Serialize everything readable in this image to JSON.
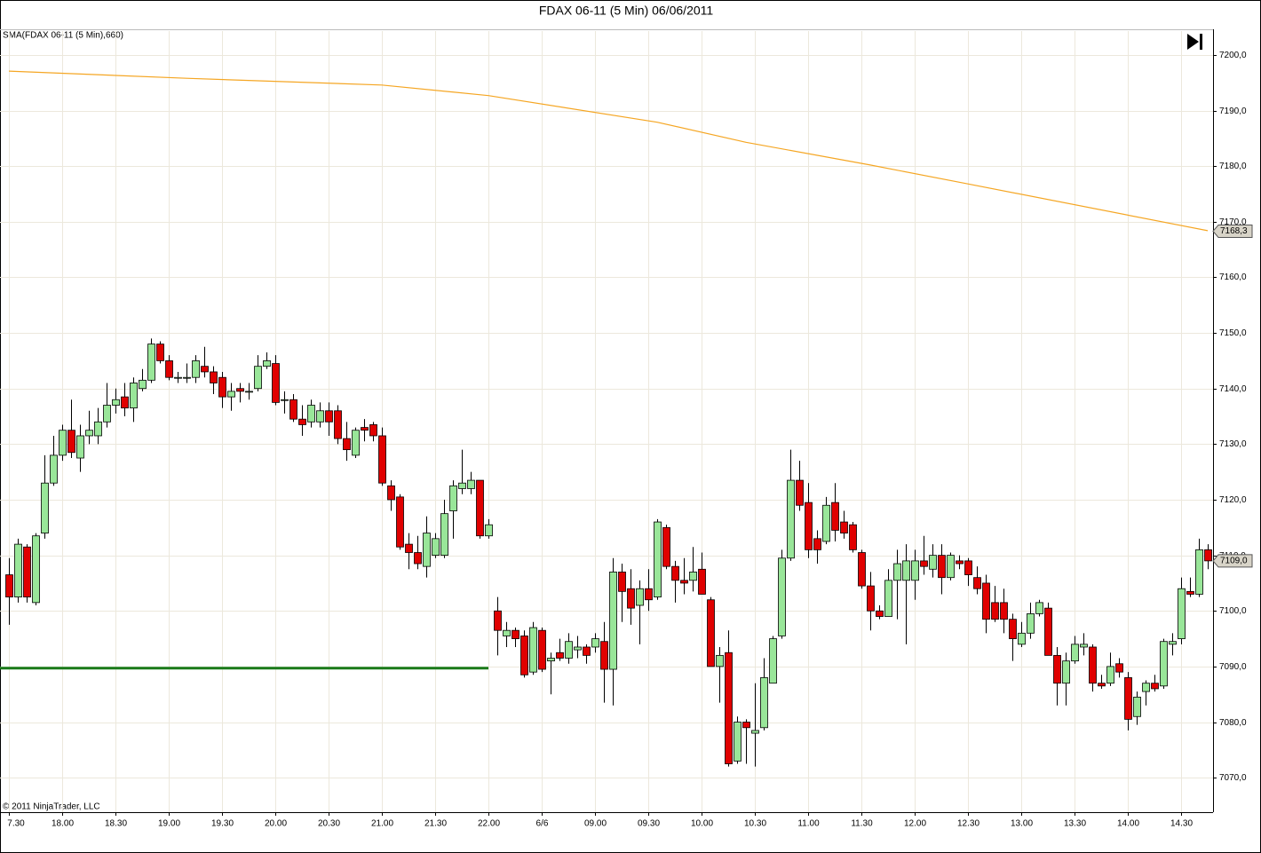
{
  "chart_data": {
    "type": "candlestick",
    "title": "FDAX 06-11 (5 Min)  06/06/2011",
    "indicator_label": "SMA(FDAX 06-11 (5 Min),660)",
    "copyright": "© 2011 NinjaTrader, LLC",
    "up_color": "#99e699",
    "down_color": "#e00000",
    "grid": true,
    "xlim": [
      -1,
      135.6
    ],
    "xticks": [
      {
        "value": 0,
        "label": "7.30"
      },
      {
        "value": 6,
        "label": "18.00"
      },
      {
        "value": 12,
        "label": "18.30"
      },
      {
        "value": 18,
        "label": "19.00"
      },
      {
        "value": 24,
        "label": "19.30"
      },
      {
        "value": 30,
        "label": "20.00"
      },
      {
        "value": 36,
        "label": "20.30"
      },
      {
        "value": 42,
        "label": "21.00"
      },
      {
        "value": 48,
        "label": "21.30"
      },
      {
        "value": 54,
        "label": "22.00"
      },
      {
        "value": 60,
        "label": "6/6"
      },
      {
        "value": 66,
        "label": "09.00"
      },
      {
        "value": 72,
        "label": "09.30"
      },
      {
        "value": 78,
        "label": "10.00"
      },
      {
        "value": 84,
        "label": "10.30"
      },
      {
        "value": 90,
        "label": "11.00"
      },
      {
        "value": 96,
        "label": "11.30"
      },
      {
        "value": 102,
        "label": "12.00"
      },
      {
        "value": 108,
        "label": "12.30"
      },
      {
        "value": 114,
        "label": "13.00"
      },
      {
        "value": 120,
        "label": "13.30"
      },
      {
        "value": 126,
        "label": "14.00"
      },
      {
        "value": 132,
        "label": "14.30"
      }
    ],
    "ylim": [
      7063.8,
      7204.3
    ],
    "yticks": [
      {
        "value": 7070,
        "label": "7070,0"
      },
      {
        "value": 7080,
        "label": "7080,0"
      },
      {
        "value": 7090,
        "label": "7090,0"
      },
      {
        "value": 7100,
        "label": "7100,0"
      },
      {
        "value": 7110,
        "label": "7110,0"
      },
      {
        "value": 7120,
        "label": "7120,0"
      },
      {
        "value": 7130,
        "label": "7130,0"
      },
      {
        "value": 7140,
        "label": "7140,0"
      },
      {
        "value": 7150,
        "label": "7150,0"
      },
      {
        "value": 7160,
        "label": "7160,0"
      },
      {
        "value": 7170,
        "label": "7170,0"
      },
      {
        "value": 7180,
        "label": "7180,0"
      },
      {
        "value": 7190,
        "label": "7190,0"
      },
      {
        "value": 7200,
        "label": "7200,0"
      }
    ],
    "open": [
      7106.5,
      7102.5,
      7111.5,
      7101.5,
      7114,
      7123,
      7128,
      7132.5,
      7127.5,
      7131.5,
      7131.5,
      7134,
      7137,
      7138.5,
      7136.5,
      7140,
      7141.5,
      7148,
      7145,
      7142,
      7142,
      7142,
      7144,
      7143,
      7142,
      7138.5,
      7140,
      7139.5,
      7140,
      7144,
      7144.5,
      7138,
      7138,
      7134.5,
      7134,
      7134,
      7136,
      7136,
      7131,
      7128,
      7133,
      7133.5,
      7131.5,
      7122.5,
      7120.5,
      7112,
      7110.5,
      7108,
      7110,
      7110,
      7118,
      7122,
      7122,
      7123.5,
      7113.5,
      7100,
      7095.5,
      7096.5,
      7095.5,
      7089,
      7096.5,
      7091,
      7092.5,
      7091.5,
      7093,
      7093.5,
      7093.5,
      7094.5,
      7089.5,
      7107,
      7104,
      7101,
      7104,
      7102.5,
      7115,
      7108,
      7105.5,
      7105.5,
      7107.5,
      7102,
      7090,
      7092.5,
      7073,
      7080,
      7078,
      7079,
      7087,
      7095.5,
      7109.5,
      7123.5,
      7119.5,
      7113,
      7112.5,
      7119.5,
      7116,
      7115.5,
      7110.5,
      7104.5,
      7100,
      7099,
      7105.5,
      7105.5,
      7105.5,
      7109,
      7107.5,
      7110,
      7106,
      7109,
      7109,
      7106,
      7105,
      7101.5,
      7101.5,
      7098.5,
      7094,
      7096,
      7099.5,
      7100.5,
      7092,
      7087,
      7091,
      7093.5,
      7093.5,
      7087,
      7087,
      7090.5,
      7088,
      7081,
      7085.5,
      7087,
      7086.5,
      7094,
      7095,
      7103.5,
      7103,
      7111
    ],
    "high": [
      7109.5,
      7113,
      7112,
      7114,
      7128,
      7131.5,
      7133.5,
      7138,
      7133.5,
      7136,
      7136.5,
      7141,
      7140,
      7141,
      7142,
      7143.5,
      7149,
      7148.5,
      7146,
      7143,
      7144.5,
      7146,
      7147.5,
      7144,
      7143,
      7141,
      7141,
      7141,
      7146,
      7146.5,
      7146,
      7139.5,
      7139,
      7137,
      7138,
      7137.5,
      7137.5,
      7137,
      7134,
      7133,
      7134.5,
      7134,
      7133,
      7123.5,
      7121,
      7114,
      7113.5,
      7117,
      7114,
      7120,
      7123.5,
      7129,
      7125,
      7123.5,
      7116.5,
      7102.5,
      7098,
      7097,
      7096.5,
      7098,
      7097,
      7092.5,
      7095,
      7096,
      7095.5,
      7094,
      7096,
      7098,
      7109.5,
      7108.5,
      7107.5,
      7105.5,
      7107.5,
      7116.5,
      7115.5,
      7109,
      7109.5,
      7111.5,
      7110.5,
      7102.5,
      7093.5,
      7096.5,
      7081,
      7080.5,
      7087,
      7091.5,
      7095.5,
      7111,
      7129,
      7127,
      7123,
      7114.5,
      7120.5,
      7123,
      7118,
      7116,
      7111,
      7107,
      7101,
      7107.5,
      7111,
      7112,
      7111,
      7113.5,
      7112,
      7112,
      7110.5,
      7110,
      7109.5,
      7108,
      7106.5,
      7104.5,
      7104,
      7099.5,
      7098,
      7101.5,
      7102,
      7101.5,
      7093.5,
      7092.5,
      7095.5,
      7096,
      7094,
      7088.5,
      7092.5,
      7091.5,
      7089,
      7085.5,
      7087.5,
      7088.5,
      7095,
      7096,
      7106,
      7106,
      7113,
      7112
    ],
    "low": [
      7097.5,
      7101.5,
      7101.5,
      7101,
      7113,
      7122.5,
      7127,
      7127.5,
      7125,
      7130,
      7130,
      7133,
      7135.5,
      7135,
      7134,
      7139.5,
      7141,
      7144.5,
      7141.5,
      7141,
      7141,
      7141,
      7142,
      7139,
      7136.5,
      7136,
      7137.5,
      7138,
      7139.5,
      7143.5,
      7137,
      7135.5,
      7134,
      7131.5,
      7133,
      7133,
      7131.5,
      7130,
      7127,
      7127.5,
      7130.5,
      7130.5,
      7122.5,
      7118,
      7111,
      7107.5,
      7107.5,
      7106,
      7109.5,
      7109.5,
      7113,
      7121,
      7121,
      7113,
      7113,
      7092,
      7093.5,
      7093.5,
      7088,
      7088.5,
      7089,
      7085,
      7091,
      7090.5,
      7091.5,
      7090.5,
      7092.5,
      7083.5,
      7083,
      7098,
      7097.5,
      7094,
      7100,
      7102,
      7107.5,
      7101.5,
      7103,
      7103.5,
      7103,
      7090,
      7083.5,
      7072,
      7072.5,
      7072.5,
      7072,
      7078.5,
      7087,
      7095,
      7109,
      7118,
      7109.5,
      7108.5,
      7112,
      7112.5,
      7113,
      7110.5,
      7104,
      7096.5,
      7098.5,
      7099,
      7098.5,
      7094,
      7102,
      7106.5,
      7106,
      7103,
      7105.5,
      7107.5,
      7104.5,
      7103,
      7096,
      7098,
      7096,
      7091,
      7093.5,
      7095,
      7099,
      7092,
      7083,
      7083,
      7090.5,
      7092,
      7085.5,
      7086,
      7086.5,
      7088,
      7078.5,
      7079.5,
      7083,
      7085.5,
      7086,
      7092,
      7094,
      7102.5,
      7102.5,
      7107.5
    ],
    "close": [
      7102.5,
      7112,
      7102.5,
      7113.5,
      7123,
      7128,
      7132.5,
      7128.5,
      7131.5,
      7132.5,
      7134,
      7137,
      7138,
      7136.5,
      7141,
      7141.5,
      7148,
      7145,
      7142,
      7142,
      7142,
      7145,
      7143,
      7141,
      7138.5,
      7139.5,
      7139.5,
      7139.5,
      7144,
      7145,
      7137.5,
      7138,
      7134.5,
      7133.5,
      7137,
      7136,
      7134,
      7131,
      7129,
      7132.5,
      7132.5,
      7131.5,
      7123,
      7120,
      7111.5,
      7110.5,
      7108.5,
      7114,
      7113,
      7117.5,
      7122.5,
      7123,
      7123.5,
      7113.5,
      7115.5,
      7096.5,
      7096.5,
      7095,
      7088.5,
      7097,
      7089.5,
      7091.5,
      7091.5,
      7094.5,
      7093.5,
      7092,
      7095,
      7089.5,
      7107,
      7103.5,
      7100.5,
      7104,
      7102,
      7116,
      7108,
      7105.5,
      7105,
      7107,
      7103,
      7090,
      7092,
      7072.5,
      7080,
      7079,
      7078.5,
      7088,
      7095,
      7109.5,
      7123.5,
      7119,
      7111,
      7111,
      7119,
      7114.5,
      7114,
      7111,
      7104.5,
      7100,
      7099,
      7105.5,
      7108.5,
      7109,
      7109,
      7108,
      7110,
      7106,
      7110,
      7108.5,
      7106.5,
      7104,
      7098.5,
      7098.5,
      7098.5,
      7095,
      7096,
      7099.5,
      7101.5,
      7092,
      7087,
      7091,
      7094,
      7094,
      7087,
      7086.5,
      7090,
      7089,
      7080.5,
      7084.5,
      7087,
      7086,
      7094.5,
      7094.5,
      7104,
      7103,
      7111,
      7109
    ],
    "sma": {
      "color": "#f5a623",
      "x": [
        0,
        20,
        42,
        54,
        73,
        83,
        97,
        108,
        135
      ],
      "values": [
        7197.1,
        7195.8,
        7194.6,
        7192.7,
        7187.9,
        7184.3,
        7180.2,
        7176.8,
        7168.4
      ]
    },
    "sma_last": {
      "value": 7168.3,
      "label": "7168,3"
    },
    "last_price": {
      "value": 7109,
      "label": "7109,0"
    },
    "level": {
      "value": 7089.7,
      "x": [
        -1,
        54
      ],
      "color": "#1a7a1a"
    }
  }
}
